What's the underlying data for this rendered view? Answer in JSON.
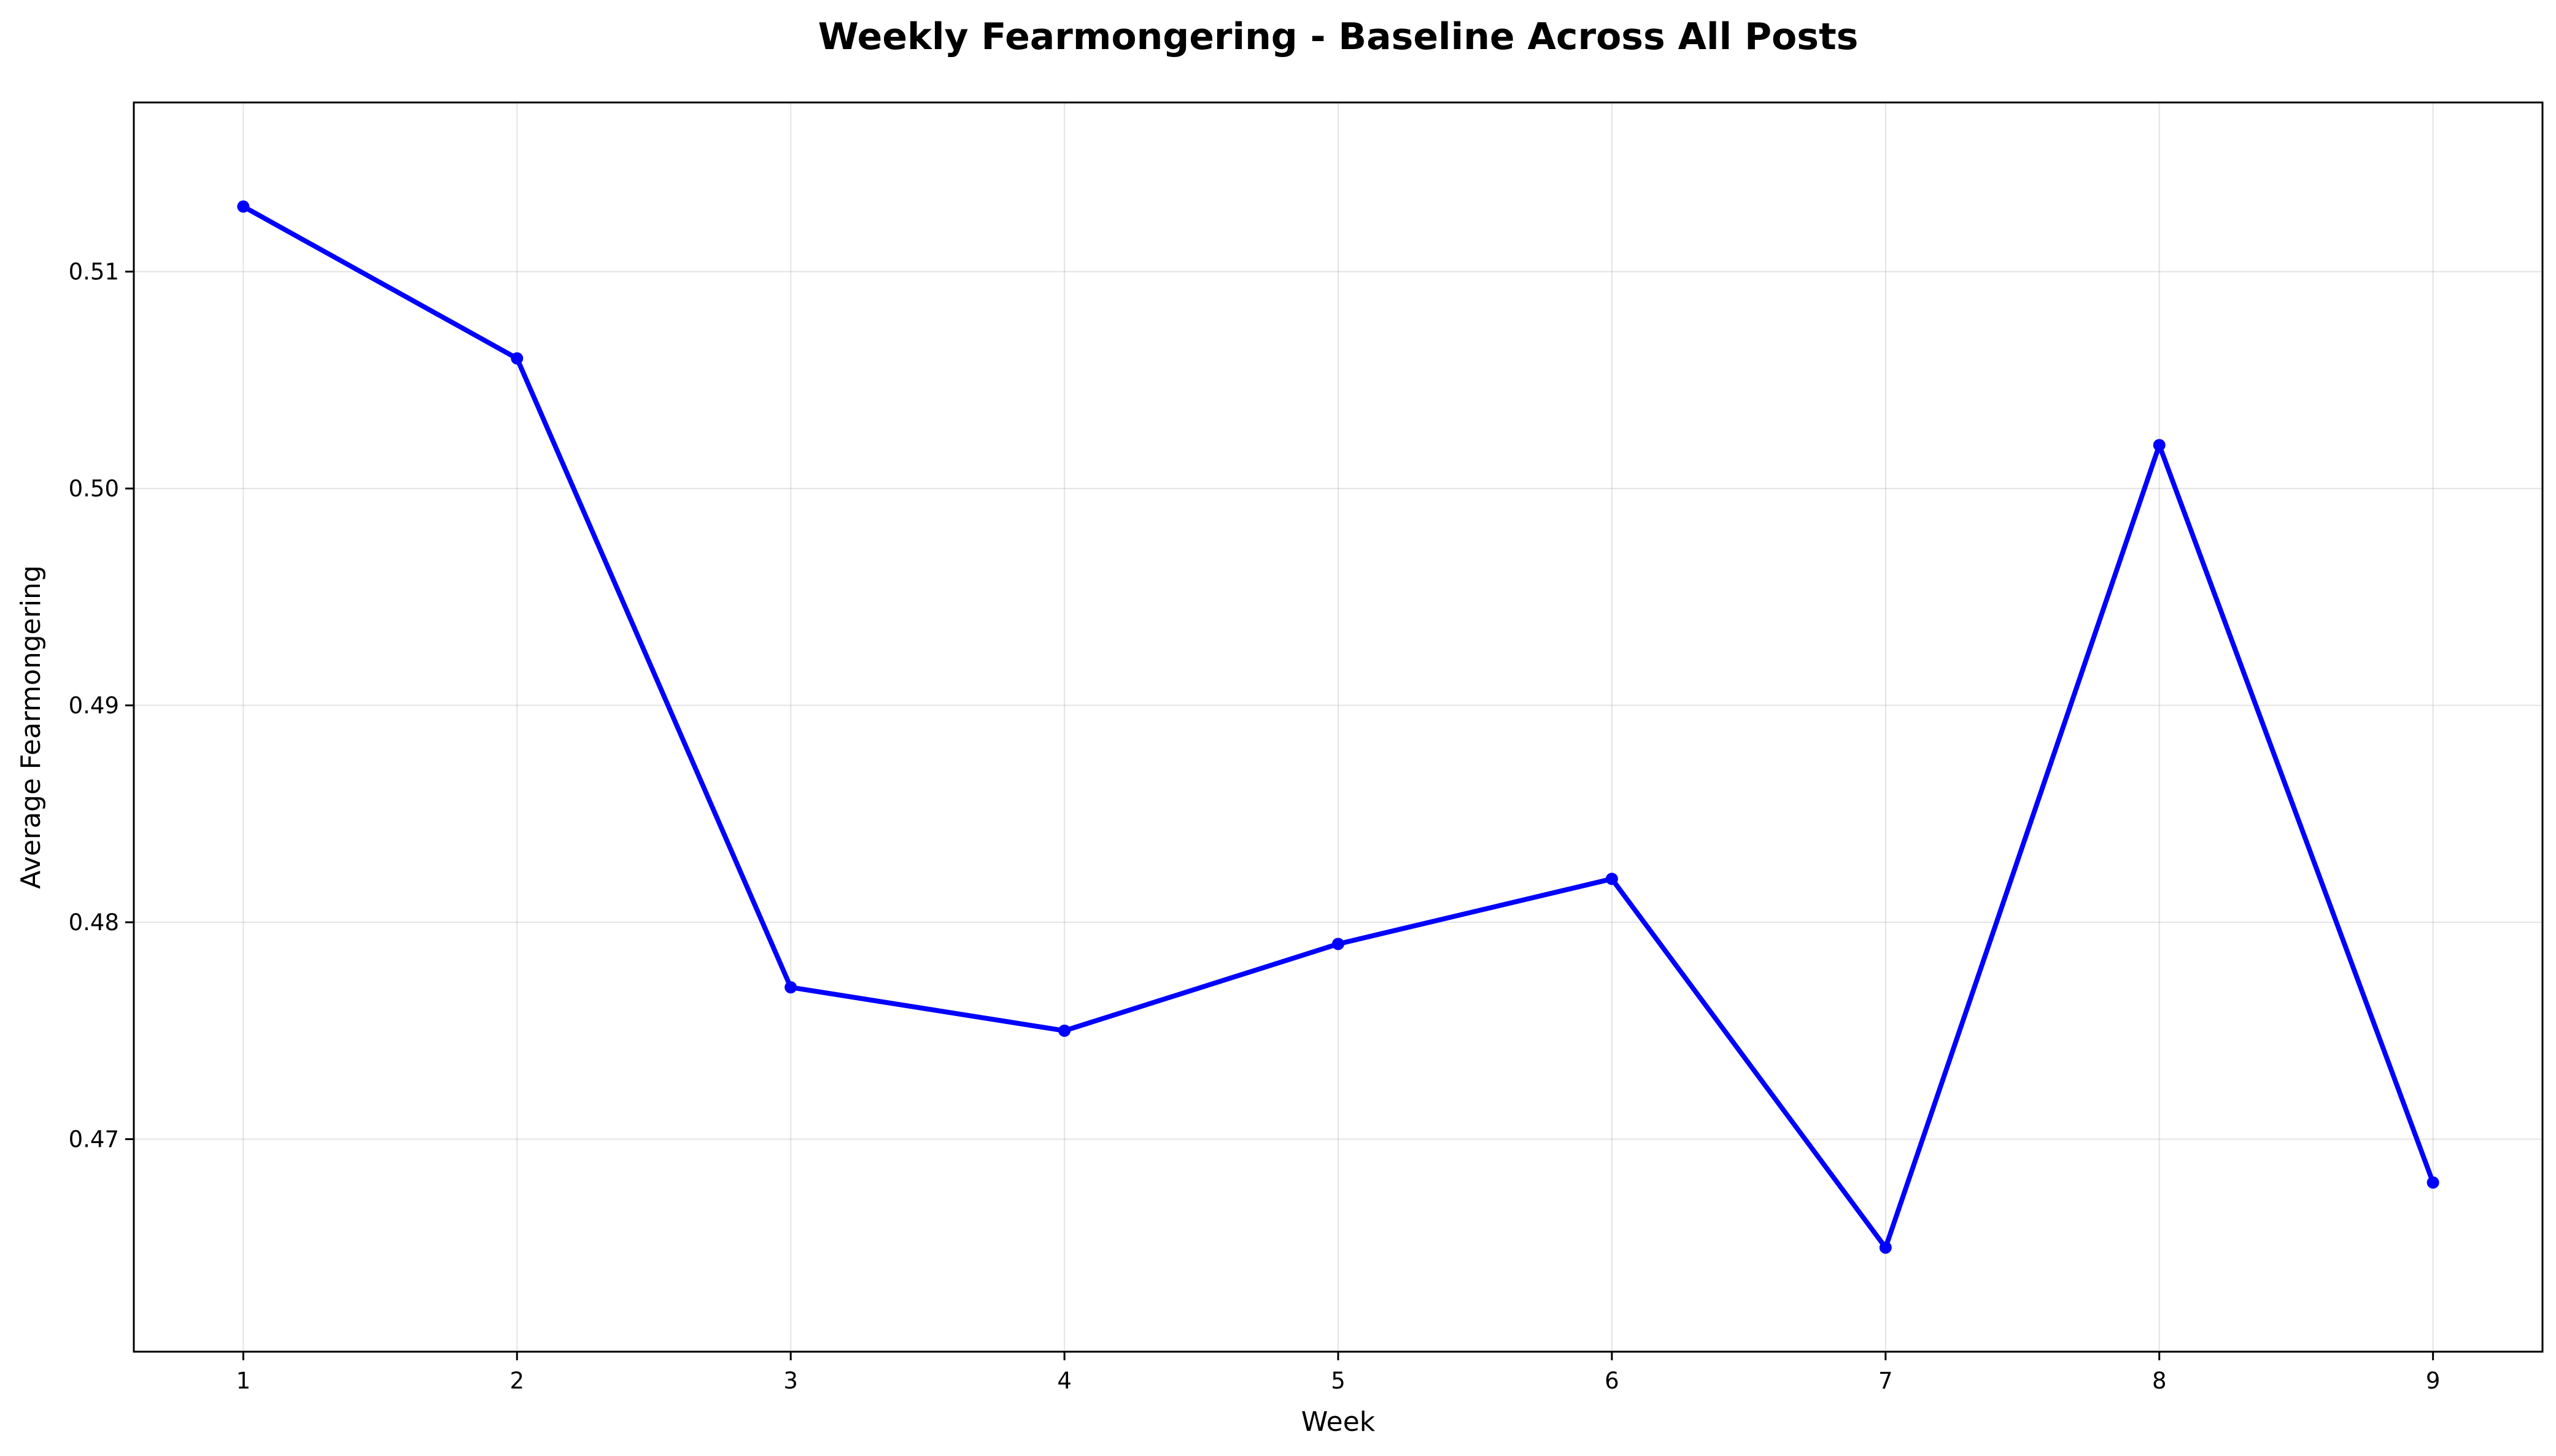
{
  "chart_data": {
    "type": "line",
    "title": "Weekly Fearmongering - Baseline Across All Posts",
    "xlabel": "Week",
    "ylabel": "Average Fearmongering",
    "x": [
      1,
      2,
      3,
      4,
      5,
      6,
      7,
      8,
      9
    ],
    "series": [
      {
        "values": [
          0.513,
          0.506,
          0.477,
          0.475,
          0.479,
          0.482,
          0.465,
          0.502,
          0.468
        ],
        "color": "#0000ff",
        "marker": "circle"
      }
    ],
    "xlim": [
      0.6,
      9.4
    ],
    "ylim": [
      0.4602,
      0.5178
    ],
    "xticks": [
      "1",
      "2",
      "3",
      "4",
      "5",
      "6",
      "7",
      "8",
      "9"
    ],
    "yticks": [
      "0.47",
      "0.48",
      "0.49",
      "0.50",
      "0.51"
    ],
    "ytick_values": [
      0.47,
      0.48,
      0.49,
      0.5,
      0.51
    ],
    "grid": true,
    "legend": "none"
  }
}
